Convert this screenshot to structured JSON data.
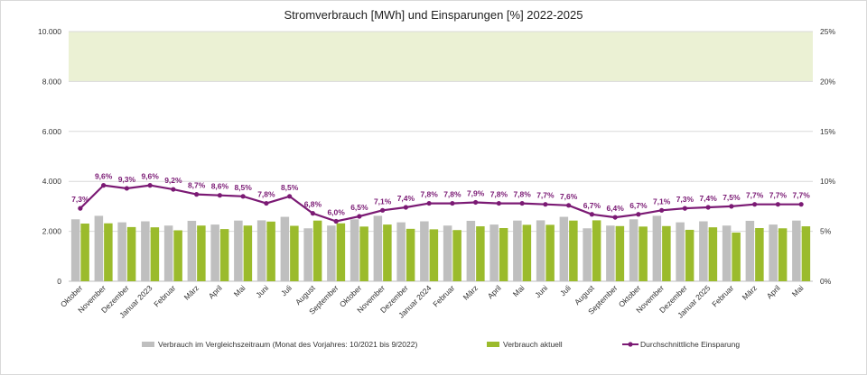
{
  "chart_data": {
    "type": "bar+line",
    "title": "Stromverbrauch [MWh] und Einsparungen [%] 2022-2025",
    "categories": [
      "Oktober",
      "November",
      "Dezember",
      "Januar 2023",
      "Februar",
      "März",
      "April",
      "Mai",
      "Juni",
      "Juli",
      "August",
      "September",
      "Oktober",
      "November",
      "Dezember",
      "Januar 2024",
      "Februar",
      "März",
      "April",
      "Mai",
      "Juni",
      "Juli",
      "August",
      "September",
      "Oktober",
      "November",
      "Dezember",
      "Januar 2025",
      "Februar",
      "März",
      "April",
      "Mai"
    ],
    "ylim_left": [
      0,
      10000
    ],
    "left_ticks": [
      "0",
      "2.000",
      "4.000",
      "6.000",
      "8.000",
      "10.000"
    ],
    "left_tick_values": [
      0,
      2000,
      4000,
      6000,
      8000,
      10000
    ],
    "ylim_right": [
      0,
      25
    ],
    "right_ticks": [
      "0%",
      "5%",
      "10%",
      "15%",
      "20%",
      "25%"
    ],
    "right_tick_values": [
      0,
      5,
      10,
      15,
      20,
      25
    ],
    "highlight_band": {
      "from": 8000,
      "to": 10000,
      "color": "#ebf1d4"
    },
    "series": [
      {
        "name": "Verbrauch im Vergleichszeitraum (Monat des Vorjahres: 10/2021 bis 9/2022)",
        "kind": "bar",
        "color": "#bfbfbf",
        "values": [
          2480,
          2620,
          2360,
          2400,
          2230,
          2420,
          2270,
          2430,
          2440,
          2580,
          2120,
          2230,
          2480,
          2620,
          2360,
          2400,
          2230,
          2420,
          2270,
          2430,
          2440,
          2580,
          2120,
          2230,
          2480,
          2620,
          2360,
          2400,
          2230,
          2420,
          2270,
          2430
        ]
      },
      {
        "name": "Verbrauch aktuell",
        "kind": "bar",
        "color": "#9bbb2c",
        "values": [
          2310,
          2320,
          2170,
          2160,
          2040,
          2230,
          2090,
          2230,
          2390,
          2220,
          2430,
          2320,
          2190,
          2270,
          2100,
          2080,
          2050,
          2200,
          2130,
          2260,
          2260,
          2430,
          2440,
          2210,
          2190,
          2210,
          2060,
          2160,
          1950,
          2130,
          2120,
          2200
        ]
      },
      {
        "name": "Durchschnittliche Einsparung",
        "kind": "line",
        "color": "#7b1a74",
        "values": [
          7.3,
          9.6,
          9.3,
          9.6,
          9.2,
          8.7,
          8.6,
          8.5,
          7.8,
          8.5,
          6.8,
          6.0,
          6.5,
          7.1,
          7.4,
          7.8,
          7.8,
          7.9,
          7.8,
          7.8,
          7.7,
          7.6,
          6.7,
          6.4,
          6.7,
          7.1,
          7.3,
          7.4,
          7.5,
          7.7,
          7.7,
          7.7
        ],
        "labels": [
          "7,3%",
          "9,6%",
          "9,3%",
          "9,6%",
          "9,2%",
          "8,7%",
          "8,6%",
          "8,5%",
          "7,8%",
          "8,5%",
          "6,8%",
          "6,0%",
          "6,5%",
          "7,1%",
          "7,4%",
          "7,8%",
          "7,8%",
          "7,9%",
          "7,8%",
          "7,8%",
          "7,7%",
          "7,6%",
          "6,7%",
          "6,4%",
          "6,7%",
          "7,1%",
          "7,3%",
          "7,4%",
          "7,5%",
          "7,7%",
          "7,7%",
          "7,7%"
        ]
      }
    ],
    "legend_position": "bottom",
    "grid": true
  }
}
